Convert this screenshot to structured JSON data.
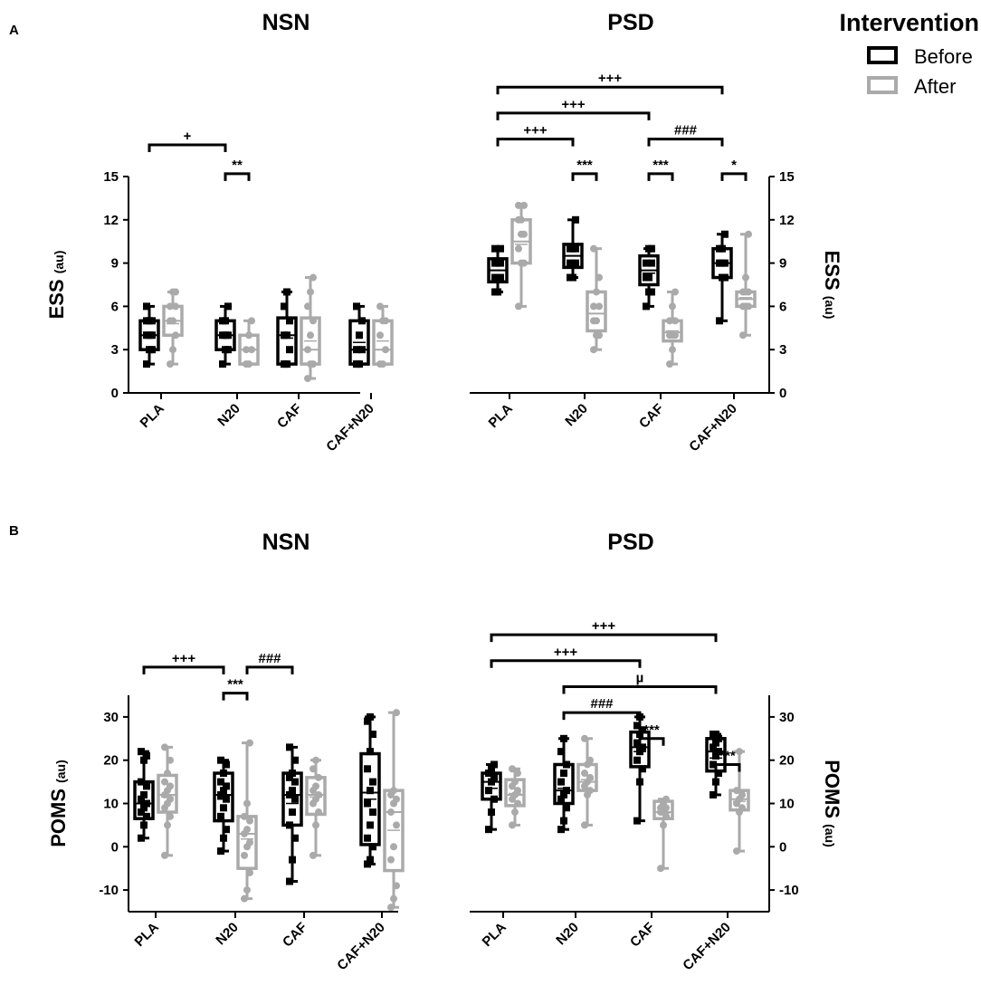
{
  "legend": {
    "title": "Intervention",
    "items": [
      {
        "label": "Before",
        "color": "#000000"
      },
      {
        "label": "After",
        "color": "#aaaaaa"
      }
    ]
  },
  "colors": {
    "before": "#000000",
    "after": "#aaaaaa"
  },
  "chart_data": [
    {
      "type": "box",
      "panel": "A",
      "title": "NSN",
      "ylabel": "ESS",
      "yunit": "(au)",
      "ylim": [
        0,
        15
      ],
      "yticks": [
        0,
        3,
        6,
        9,
        12,
        15
      ],
      "categories": [
        "PLA",
        "N20",
        "CAF",
        "CAF+N20"
      ],
      "series": [
        {
          "name": "Before",
          "boxes": [
            {
              "min": 2,
              "q1": 3,
              "median": 4,
              "q3": 5,
              "max": 6,
              "mean": 4.2,
              "points": [
                2,
                3,
                3,
                4,
                4,
                4,
                5,
                5,
                5,
                6
              ]
            },
            {
              "min": 2,
              "q1": 3,
              "median": 4,
              "q3": 5,
              "max": 6,
              "mean": 4.1,
              "points": [
                2,
                3,
                3,
                4,
                4,
                4,
                5,
                5,
                6
              ]
            },
            {
              "min": 2,
              "q1": 2,
              "median": 4,
              "q3": 5.2,
              "max": 7,
              "mean": 3.8,
              "points": [
                2,
                2,
                3,
                4,
                4,
                5,
                6,
                7
              ]
            },
            {
              "min": 2,
              "q1": 2,
              "median": 3,
              "q3": 5,
              "max": 6,
              "mean": 3.5,
              "points": [
                2,
                2,
                3,
                3,
                4,
                5,
                6
              ]
            }
          ]
        },
        {
          "name": "After",
          "boxes": [
            {
              "min": 2,
              "q1": 4,
              "median": 5,
              "q3": 6,
              "max": 7,
              "mean": 4.8,
              "points": [
                2,
                3,
                4,
                5,
                5,
                6,
                6,
                7,
                7
              ]
            },
            {
              "min": 2,
              "q1": 2,
              "median": 3,
              "q3": 4,
              "max": 5,
              "mean": 3.0,
              "points": [
                2,
                2,
                3,
                3,
                4,
                5
              ]
            },
            {
              "min": 1,
              "q1": 2,
              "median": 3,
              "q3": 5.2,
              "max": 8,
              "mean": 3.6,
              "points": [
                1,
                2,
                2,
                3,
                4,
                5,
                6,
                7,
                8
              ]
            },
            {
              "min": 2,
              "q1": 2,
              "median": 3,
              "q3": 5,
              "max": 6,
              "mean": 3.6,
              "points": [
                2,
                2,
                3,
                4,
                5,
                5,
                6
              ]
            }
          ]
        }
      ],
      "brackets": [
        {
          "from": [
            "PLA",
            "Before"
          ],
          "to": [
            "N20",
            "Before"
          ],
          "label": "+",
          "y": 17.2
        },
        {
          "from": [
            "N20",
            "Before"
          ],
          "to": [
            "N20",
            "After"
          ],
          "label": "**",
          "y": 15.2
        }
      ]
    },
    {
      "type": "box",
      "panel": "A",
      "title": "PSD",
      "ylabel": "ESS",
      "yunit": "(au)",
      "ylim": [
        0,
        15
      ],
      "yticks": [
        0,
        3,
        6,
        9,
        12,
        15
      ],
      "categories": [
        "PLA",
        "N20",
        "CAF",
        "CAF+N20"
      ],
      "series": [
        {
          "name": "Before",
          "boxes": [
            {
              "min": 7,
              "q1": 7.7,
              "median": 8.5,
              "q3": 9.3,
              "max": 10,
              "mean": 8.5,
              "points": [
                7,
                7,
                8,
                8,
                8,
                9,
                9,
                9,
                10,
                10
              ]
            },
            {
              "min": 8,
              "q1": 8.7,
              "median": 9.5,
              "q3": 10.3,
              "max": 12,
              "mean": 9.5,
              "points": [
                8,
                8,
                9,
                9,
                9,
                10,
                10,
                10,
                12
              ]
            },
            {
              "min": 6,
              "q1": 7.5,
              "median": 8.5,
              "q3": 9.5,
              "max": 10,
              "mean": 8.3,
              "points": [
                6,
                7,
                7,
                8,
                8,
                9,
                9,
                10,
                10
              ]
            },
            {
              "min": 5,
              "q1": 8,
              "median": 9,
              "q3": 10,
              "max": 11,
              "mean": 8.8,
              "points": [
                5,
                8,
                8,
                9,
                9,
                9,
                10,
                10,
                11
              ]
            }
          ]
        },
        {
          "name": "After",
          "boxes": [
            {
              "min": 6,
              "q1": 9,
              "median": 10.5,
              "q3": 12,
              "max": 13,
              "mean": 10.3,
              "points": [
                6,
                9,
                9,
                10,
                11,
                11,
                12,
                12,
                13,
                13
              ]
            },
            {
              "min": 3,
              "q1": 4.3,
              "median": 5.5,
              "q3": 7,
              "max": 10,
              "mean": 5.5,
              "points": [
                3,
                4,
                4,
                5,
                5,
                6,
                6,
                7,
                8,
                10
              ]
            },
            {
              "min": 2,
              "q1": 3.6,
              "median": 4.2,
              "q3": 5,
              "max": 7,
              "mean": 4.3,
              "points": [
                2,
                3,
                4,
                4,
                4,
                5,
                5,
                6,
                7
              ]
            },
            {
              "min": 4,
              "q1": 6,
              "median": 6.5,
              "q3": 7,
              "max": 11,
              "mean": 6.6,
              "points": [
                4,
                6,
                6,
                6,
                7,
                7,
                7,
                8,
                11
              ]
            }
          ]
        }
      ],
      "brackets": [
        {
          "from": [
            "PLA",
            "Before"
          ],
          "to": [
            "CAF+N20",
            "Before"
          ],
          "label": "+++",
          "y": 21.2
        },
        {
          "from": [
            "PLA",
            "Before"
          ],
          "to": [
            "CAF",
            "Before"
          ],
          "label": "+++",
          "y": 19.4
        },
        {
          "from": [
            "PLA",
            "Before"
          ],
          "to": [
            "N20",
            "Before"
          ],
          "label": "+++",
          "y": 17.6
        },
        {
          "from": [
            "CAF",
            "Before"
          ],
          "to": [
            "CAF+N20",
            "Before"
          ],
          "label": "###",
          "y": 17.6
        },
        {
          "from": [
            "N20",
            "Before"
          ],
          "to": [
            "N20",
            "After"
          ],
          "label": "***",
          "y": 15.2
        },
        {
          "from": [
            "CAF",
            "Before"
          ],
          "to": [
            "CAF",
            "After"
          ],
          "label": "***",
          "y": 15.2
        },
        {
          "from": [
            "CAF+N20",
            "Before"
          ],
          "to": [
            "CAF+N20",
            "After"
          ],
          "label": "*",
          "y": 15.2
        }
      ]
    },
    {
      "type": "box",
      "panel": "B",
      "title": "NSN",
      "ylabel": "POMS",
      "yunit": "(au)",
      "ylim": [
        -15,
        35
      ],
      "yticks": [
        -10,
        0,
        10,
        20,
        30
      ],
      "categories": [
        "PLA",
        "N20",
        "CAF",
        "CAF+N20"
      ],
      "series": [
        {
          "name": "Before",
          "boxes": [
            {
              "min": 2,
              "q1": 6.5,
              "median": 10,
              "q3": 15,
              "max": 22,
              "mean": 10.5,
              "points": [
                2,
                5,
                7,
                8,
                9,
                10,
                11,
                12,
                14,
                15,
                20,
                21,
                22
              ]
            },
            {
              "min": -1,
              "q1": 6,
              "median": 12,
              "q3": 17,
              "max": 20,
              "mean": 11,
              "points": [
                -1,
                2,
                4,
                7,
                9,
                11,
                12,
                13,
                14,
                15,
                17,
                19,
                20
              ]
            },
            {
              "min": -8,
              "q1": 5,
              "median": 12,
              "q3": 17,
              "max": 23,
              "mean": 10,
              "points": [
                -8,
                -3,
                2,
                5,
                8,
                11,
                12,
                13,
                15,
                16,
                17,
                20,
                23
              ]
            },
            {
              "min": -4,
              "q1": 0.5,
              "median": 12.5,
              "q3": 21.5,
              "max": 30,
              "mean": 11,
              "points": [
                -4,
                -3,
                0,
                2,
                5,
                8,
                10,
                13,
                15,
                18,
                22,
                26,
                29,
                30
              ]
            }
          ]
        },
        {
          "name": "After",
          "boxes": [
            {
              "min": -2,
              "q1": 8,
              "median": 12,
              "q3": 16.5,
              "max": 23,
              "mean": 11.5,
              "points": [
                -2,
                5,
                7,
                9,
                10,
                11,
                12,
                13,
                14,
                15,
                17,
                20,
                23
              ]
            },
            {
              "min": -12,
              "q1": -5,
              "median": 3,
              "q3": 7,
              "max": 24,
              "mean": 1.8,
              "points": [
                -12,
                -10,
                -6,
                -2,
                0,
                1,
                3,
                4,
                6,
                7,
                10,
                24
              ]
            },
            {
              "min": -2,
              "q1": 7.5,
              "median": 12,
              "q3": 16,
              "max": 20,
              "mean": 11.5,
              "points": [
                -2,
                5,
                8,
                10,
                11,
                12,
                13,
                14,
                16,
                18,
                20
              ]
            },
            {
              "min": -14,
              "q1": -5.5,
              "median": 8,
              "q3": 13,
              "max": 31,
              "mean": 3.8,
              "points": [
                -14,
                -12,
                -9,
                -3,
                0,
                5,
                8,
                10,
                11,
                12,
                13,
                31
              ]
            }
          ]
        }
      ],
      "brackets": [
        {
          "from": [
            "PLA",
            "Before"
          ],
          "to": [
            "N20",
            "Before"
          ],
          "label": "+++",
          "y": 41.5
        },
        {
          "from": [
            "N20",
            "After"
          ],
          "to": [
            "CAF",
            "Before"
          ],
          "label": "###",
          "y": 41.5
        },
        {
          "from": [
            "N20",
            "Before"
          ],
          "to": [
            "N20",
            "After"
          ],
          "label": "***",
          "y": 35.5
        }
      ]
    },
    {
      "type": "box",
      "panel": "B",
      "title": "PSD",
      "ylabel": "POMS",
      "yunit": "(au)",
      "ylim": [
        -15,
        35
      ],
      "yticks": [
        -10,
        0,
        10,
        20,
        30
      ],
      "categories": [
        "PLA",
        "N20",
        "CAF",
        "CAF+N20"
      ],
      "series": [
        {
          "name": "Before",
          "boxes": [
            {
              "min": 4,
              "q1": 11,
              "median": 15,
              "q3": 17,
              "max": 19,
              "mean": 13.5,
              "points": [
                4,
                8,
                11,
                13,
                15,
                16,
                17,
                18,
                19
              ]
            },
            {
              "min": 4,
              "q1": 10,
              "median": 13,
              "q3": 19,
              "max": 25,
              "mean": 13.5,
              "points": [
                4,
                6,
                9,
                11,
                12,
                13,
                15,
                17,
                19,
                22,
                25
              ]
            },
            {
              "min": 6,
              "q1": 18.5,
              "median": 23,
              "q3": 26.5,
              "max": 30,
              "mean": 22,
              "points": [
                6,
                15,
                18,
                20,
                22,
                23,
                24,
                26,
                27,
                28,
                30
              ]
            },
            {
              "min": 12,
              "q1": 17.5,
              "median": 22,
              "q3": 25,
              "max": 26,
              "mean": 20.5,
              "points": [
                12,
                15,
                17,
                19,
                21,
                22,
                23,
                24,
                25,
                26,
                26
              ]
            }
          ]
        },
        {
          "name": "After",
          "boxes": [
            {
              "min": 5,
              "q1": 9.5,
              "median": 12,
              "q3": 15.5,
              "max": 18,
              "mean": 12.3,
              "points": [
                5,
                8,
                10,
                11,
                12,
                13,
                14,
                15,
                17,
                18
              ]
            },
            {
              "min": 5,
              "q1": 13,
              "median": 15,
              "q3": 19,
              "max": 25,
              "mean": 15.5,
              "points": [
                5,
                12,
                13,
                14,
                15,
                16,
                17,
                19,
                20,
                25
              ]
            },
            {
              "min": -5,
              "q1": 6.5,
              "median": 8,
              "q3": 10.5,
              "max": 11,
              "mean": 7.8,
              "points": [
                -5,
                5,
                7,
                8,
                8,
                9,
                9,
                10,
                11
              ]
            },
            {
              "min": -1,
              "q1": 8.5,
              "median": 11,
              "q3": 13,
              "max": 22,
              "mean": 10.5,
              "points": [
                -1,
                8,
                9,
                10,
                11,
                12,
                13,
                22
              ]
            }
          ]
        }
      ],
      "brackets": [
        {
          "from": [
            "PLA",
            "Before"
          ],
          "to": [
            "CAF+N20",
            "Before"
          ],
          "label": "+++",
          "y": 49
        },
        {
          "from": [
            "PLA",
            "Before"
          ],
          "to": [
            "CAF",
            "Before"
          ],
          "label": "+++",
          "y": 43
        },
        {
          "from": [
            "N20",
            "Before"
          ],
          "to": [
            "CAF+N20",
            "Before"
          ],
          "label": "µ",
          "y": 37
        },
        {
          "from": [
            "N20",
            "Before"
          ],
          "to": [
            "CAF",
            "Before"
          ],
          "label": "###",
          "y": 31
        },
        {
          "from": [
            "CAF",
            "Before"
          ],
          "to": [
            "CAF",
            "After"
          ],
          "label": "***",
          "y": 25
        },
        {
          "from": [
            "CAF+N20",
            "Before"
          ],
          "to": [
            "CAF+N20",
            "After"
          ],
          "label": "***",
          "y": 19
        }
      ]
    }
  ],
  "panel_labels": [
    "A",
    "B"
  ]
}
